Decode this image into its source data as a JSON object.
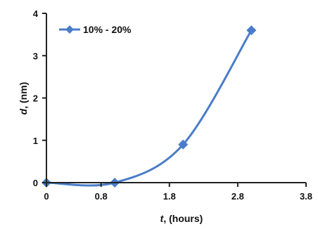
{
  "chart_data": {
    "type": "line",
    "smooth": true,
    "xlabel": {
      "italic": "t",
      "rest": ", (hours)"
    },
    "ylabel": {
      "italic": "d",
      "rest": ", (nm)"
    },
    "xlim": [
      0,
      3.8
    ],
    "ylim": [
      0,
      4
    ],
    "xticks": [
      0,
      0.8,
      1.8,
      2.8,
      3.8
    ],
    "yticks": [
      0,
      1,
      2,
      3,
      4
    ],
    "grid": false,
    "legend_position": "top-left",
    "series": [
      {
        "name": "10% - 20%",
        "color": "#4a7cc9",
        "marker": "diamond",
        "x": [
          0,
          1,
          2,
          3
        ],
        "y": [
          0,
          0,
          0.9,
          3.6
        ]
      }
    ]
  }
}
